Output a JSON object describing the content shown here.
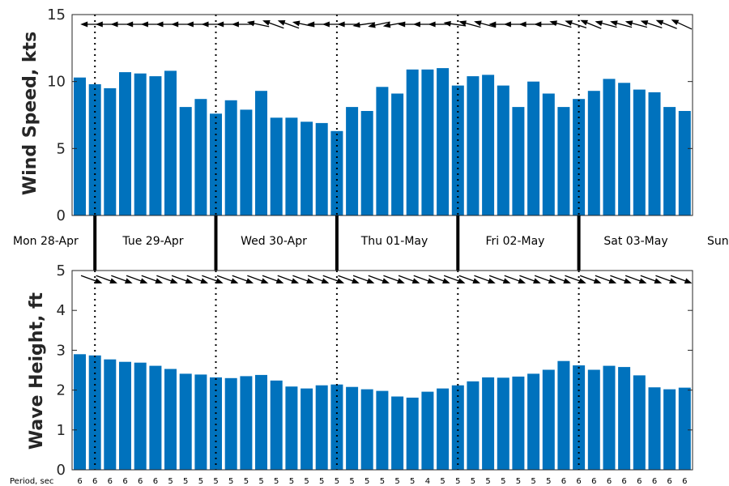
{
  "chart_data": [
    {
      "type": "bar",
      "ylabel": "Wind Speed, kts",
      "ylim": [
        0,
        15
      ],
      "yticks": [
        0,
        5,
        10,
        15
      ],
      "color": "#0072bd",
      "values": [
        10.3,
        9.8,
        9.5,
        10.7,
        10.6,
        10.4,
        10.8,
        8.1,
        8.7,
        7.6,
        8.6,
        7.9,
        9.3,
        7.3,
        7.3,
        7.0,
        6.9,
        6.3,
        8.1,
        7.8,
        9.6,
        9.1,
        10.9,
        10.9,
        11.0,
        9.7,
        10.4,
        10.5,
        9.7,
        8.1,
        10.0,
        9.1,
        8.1,
        8.7,
        9.3,
        10.2,
        9.9,
        9.4,
        9.2,
        8.1,
        7.8
      ],
      "arrow_direction_deg": [
        0,
        0,
        0,
        0,
        0,
        0,
        0,
        0,
        0,
        0,
        0,
        0,
        12,
        20,
        20,
        12,
        0,
        0,
        0,
        -8,
        -12,
        -10,
        0,
        0,
        0,
        8,
        15,
        15,
        0,
        0,
        0,
        0,
        15,
        18,
        22,
        15,
        15,
        15,
        18,
        22,
        25
      ],
      "grid": false
    },
    {
      "type": "bar",
      "ylabel": "Wave Height, ft",
      "ylim": [
        0,
        5
      ],
      "yticks": [
        0,
        1,
        2,
        3,
        4,
        5
      ],
      "color": "#0072bd",
      "values": [
        2.9,
        2.87,
        2.77,
        2.71,
        2.69,
        2.61,
        2.53,
        2.41,
        2.39,
        2.32,
        2.3,
        2.35,
        2.38,
        2.24,
        2.09,
        2.04,
        2.12,
        2.14,
        2.08,
        2.02,
        1.98,
        1.84,
        1.81,
        1.96,
        2.04,
        2.12,
        2.22,
        2.32,
        2.31,
        2.34,
        2.41,
        2.51,
        2.73,
        2.62,
        2.51,
        2.61,
        2.58,
        2.37,
        2.07,
        2.02,
        2.06
      ],
      "arrow_direction_deg": [
        0,
        20,
        20,
        20,
        20,
        20,
        20,
        20,
        20,
        20,
        20,
        20,
        20,
        20,
        20,
        20,
        20,
        20,
        20,
        20,
        20,
        20,
        20,
        20,
        20,
        20,
        20,
        20,
        20,
        20,
        20,
        20,
        20,
        20,
        20,
        20,
        20,
        20,
        20,
        20,
        20
      ],
      "grid": false
    }
  ],
  "days": [
    "Mon 28-Apr",
    "Tue 29-Apr",
    "Wed 30-Apr",
    "Thu 01-May",
    "Fri 02-May",
    "Sat 03-May",
    "Sun"
  ],
  "period_label": "Period, sec",
  "periods": [
    "6",
    "6",
    "6",
    "6",
    "6",
    "6",
    "5",
    "5",
    "5",
    "5",
    "5",
    "5",
    "5",
    "5",
    "5",
    "5",
    "5",
    "5",
    "5",
    "5",
    "5",
    "5",
    "5",
    "4",
    "5",
    "5",
    "5",
    "5",
    "5",
    "5",
    "5",
    "5",
    "6",
    "6",
    "6",
    "6",
    "6",
    "6",
    "6",
    "6",
    "6"
  ]
}
